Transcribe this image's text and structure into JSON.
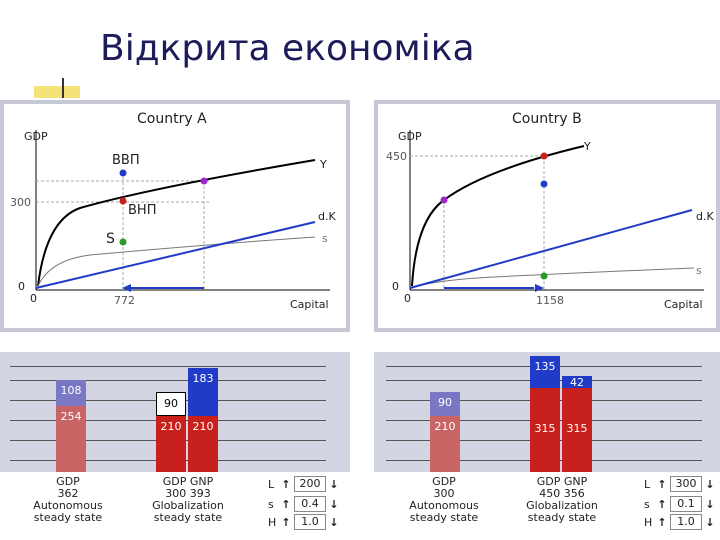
{
  "title": "Відкрита економіка",
  "countryA": {
    "title": "Country A",
    "gdp_axis": "GDP",
    "capital_axis": "Capital",
    "y_label": "Y",
    "dk_label": "d.K",
    "s_label": "s",
    "y_tick": "300",
    "x_origin": "0",
    "y_origin": "0",
    "x_mark": "772",
    "ann_gdp": "ВВП",
    "ann_gnp": "ВНП",
    "ann_s": "S"
  },
  "countryB": {
    "title": "Country B",
    "gdp_axis": "GDP",
    "capital_axis": "Capital",
    "y_label": "Y",
    "dk_label": "d.K",
    "s_label": "s",
    "y_tick": "450",
    "x_origin": "0",
    "y_origin": "0",
    "x_mark": "1158"
  },
  "barsA": {
    "autarky": {
      "top": "108",
      "bottom": "254",
      "caption1": "GDP",
      "caption2": "362",
      "caption3": "Autonomous",
      "caption4": "steady state"
    },
    "gdp": {
      "top": "90",
      "bottom": "210"
    },
    "gnp": {
      "top": "183",
      "bottom": "210"
    },
    "caption": {
      "l1": "GDP  GNP",
      "l2": "300  393",
      "l3": "Globalization",
      "l4": "steady state"
    }
  },
  "barsB": {
    "autarky": {
      "top": "90",
      "bottom": "210",
      "caption1": "GDP",
      "caption2": "300",
      "caption3": "Autonomous",
      "caption4": "steady state"
    },
    "gdp": {
      "top": "135",
      "bottom": "315"
    },
    "gnp": {
      "top": "42",
      "bottom": "315"
    },
    "caption": {
      "l1": "GDP  GNP",
      "l2": "450  356",
      "l3": "Globalization",
      "l4": "steady state"
    }
  },
  "controlsA": [
    {
      "name": "L",
      "value": "200"
    },
    {
      "name": "s",
      "value": "0.4"
    },
    {
      "name": "H",
      "value": "1.0"
    }
  ],
  "controlsB": [
    {
      "name": "L",
      "value": "300"
    },
    {
      "name": "s",
      "value": "0.1"
    },
    {
      "name": "H",
      "value": "1.0"
    }
  ],
  "colors": {
    "blue": "#1f3bc8",
    "red": "#c8201c",
    "pink": "#c86464",
    "lavender": "#7a78c4",
    "panel": "#c6c8d6"
  }
}
